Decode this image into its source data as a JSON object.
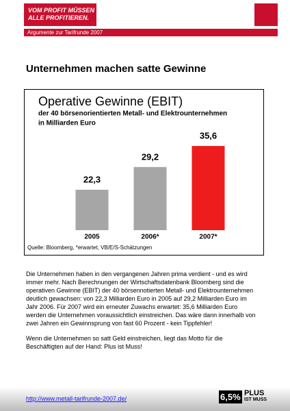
{
  "header": {
    "slogan_line1": "VOM PROFIT MÜSSEN",
    "slogan_line2": "ALLE PROFITIEREN.",
    "subtitle": "Argumente zur Tarifrunde 2007"
  },
  "headline": "Unternehmen machen satte Gewinne",
  "chart_data": {
    "type": "bar",
    "title": "Operative Gewinne (EBIT)",
    "subtitle_line1": "der 40 börsenorientierten Metall- und Elektrounternehmen",
    "subtitle_line2": "in Milliarden Euro",
    "categories": [
      "2005",
      "2006*",
      "2007*"
    ],
    "values": [
      22.3,
      29.2,
      35.6
    ],
    "value_labels": [
      "22,3",
      "29,2",
      "35,6"
    ],
    "colors": [
      "#a6a6a6",
      "#a6a6a6",
      "#ee1c1c"
    ],
    "ylim": [
      10,
      40
    ],
    "source": "Quelle: Bloomberg, *erwartet, VB/E/S-Schätzungen"
  },
  "body": {
    "paragraphs": [
      "Die Unternehmen haben in den vergangenen Jahren prima verdient - und es wird immer mehr. Nach Berechnungen der Wirtschaftsdatenbank Bloomberg sind die operativen Gewinne (EBIT) der 40 börsennotierten Metall- und Elektrounternehmen deutlich gewachsen: von 22,3 Milliarden Euro in 2005 auf 29,2 Milliarden Euro im Jahr 2006. Für 2007 wird ein erneuter Zuwachs erwartet: 35,6 Milliarden Euro werden die Unternehmen voraussichtlich einstreichen. Das wäre dann innerhalb von zwei Jahren ein Gewinnsprung von fast 60 Prozent - kein Tippfehler!",
      "Wenn die Unternehmen so satt Geld einstreichen, liegt das Motto für die Beschäftigten auf der Hand: Plus ist Muss!"
    ]
  },
  "footer": {
    "link": "http://www.metall-tarifrunde-2007.de/",
    "badge_number": "6,5%",
    "badge_line1": "PLUS",
    "badge_line2": "IST MUSS"
  }
}
